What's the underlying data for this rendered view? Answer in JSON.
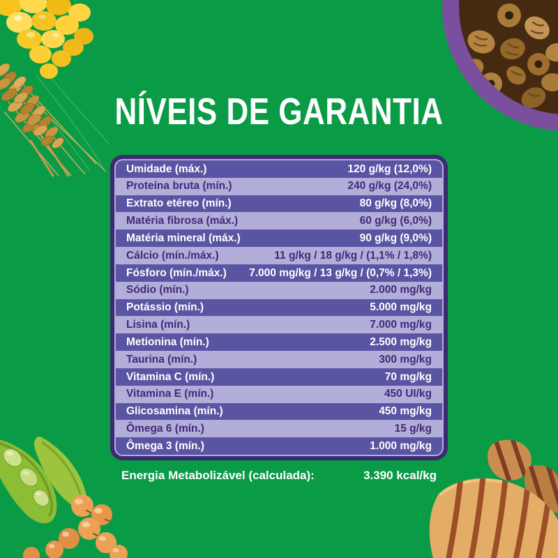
{
  "page": {
    "title": "NÍVEIS DE GARANTIA"
  },
  "colors": {
    "bg_green": "#0a9b46",
    "table_border": "#3b2b70",
    "row_dark": "#5a55a3",
    "row_light": "#b3adda",
    "text_on_dark": "#ffffff",
    "text_on_light": "#3d2c77",
    "bowl_purple": "#7a4f9e",
    "kibble_brown": "#a87a38",
    "corn_yellow": "#f8c827",
    "wheat_gold": "#c9994a",
    "soy_green": "#8dbd35",
    "soybean_orange": "#eda155",
    "chicken_tan": "#e4ad67",
    "grill_mark": "#9c4e28"
  },
  "table": {
    "rows": [
      {
        "label": "Umidade (máx.)",
        "value": "120 g/kg (12,0%)"
      },
      {
        "label": "Proteína bruta (mín.)",
        "value": "240 g/kg (24,0%)"
      },
      {
        "label": "Extrato etéreo (mín.)",
        "value": "80 g/kg (8,0%)"
      },
      {
        "label": "Matéria fibrosa (máx.)",
        "value": "60 g/kg (6,0%)"
      },
      {
        "label": "Matéria mineral (máx.)",
        "value": "90 g/kg (9,0%)"
      },
      {
        "label": "Cálcio (mín./máx.)",
        "value": "11 g/kg / 18 g/kg / (1,1% / 1,8%)"
      },
      {
        "label": "Fósforo (mín./máx.)",
        "value": "7.000 mg/kg / 13 g/kg / (0,7% / 1,3%)"
      },
      {
        "label": "Sódio (mín.)",
        "value": "2.000 mg/kg"
      },
      {
        "label": "Potássio (mín.)",
        "value": "5.000 mg/kg"
      },
      {
        "label": "Lisina (mín.)",
        "value": "7.000 mg/kg"
      },
      {
        "label": "Metionina (mín.)",
        "value": "2.500 mg/kg"
      },
      {
        "label": "Taurina (mín.)",
        "value": "300 mg/kg"
      },
      {
        "label": "Vitamina C (mín.)",
        "value": "70 mg/kg"
      },
      {
        "label": "Vitamina E (mín.)",
        "value": "450 UI/kg"
      },
      {
        "label": "Glicosamina (mín.)",
        "value": "450 mg/kg"
      },
      {
        "label": "Ômega 6 (mín.)",
        "value": "15 g/kg"
      },
      {
        "label": "Ômega 3 (mín.)",
        "value": "1.000 mg/kg"
      }
    ]
  },
  "footer": {
    "label": "Energia Metabolizável (calculada):",
    "value": "3.390 kcal/kg"
  },
  "decorations": {
    "top_left": "corn-and-wheat-photo",
    "top_right": "kibble-bowl-photo",
    "bottom_left": "soybeans-photo",
    "bottom_right": "grilled-chicken-photo"
  }
}
